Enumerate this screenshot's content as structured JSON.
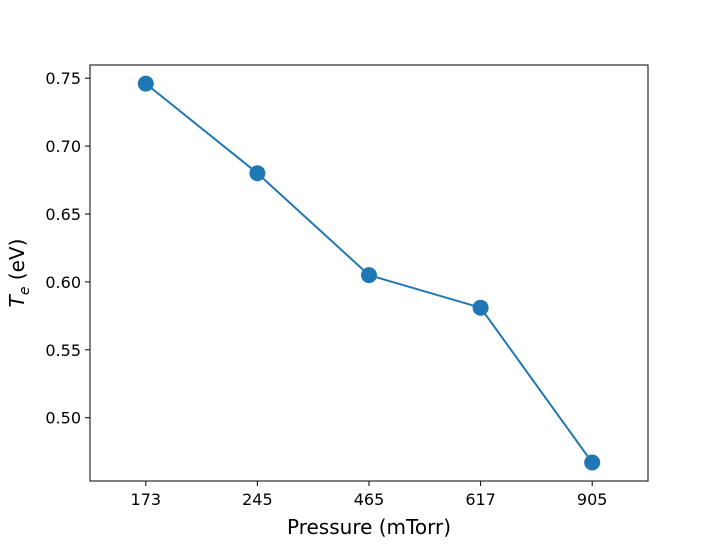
{
  "chart_data": {
    "type": "line",
    "categories": [
      "173",
      "245",
      "465",
      "617",
      "905"
    ],
    "series": [
      {
        "values": [
          0.746,
          0.68,
          0.605,
          0.581,
          0.467
        ]
      }
    ],
    "xlabel": "Pressure (mTorr)",
    "ylabel": {
      "main": "T",
      "subscript": "e",
      "unit": " (eV)"
    },
    "yticks": [
      "0.50",
      "0.55",
      "0.60",
      "0.65",
      "0.70",
      "0.75"
    ],
    "ytick_values": [
      0.5,
      0.55,
      0.6,
      0.65,
      0.7,
      0.75
    ],
    "ylim": [
      0.4534,
      0.7597
    ],
    "grid": false,
    "marker": "circle",
    "color": "#1f77b4"
  }
}
